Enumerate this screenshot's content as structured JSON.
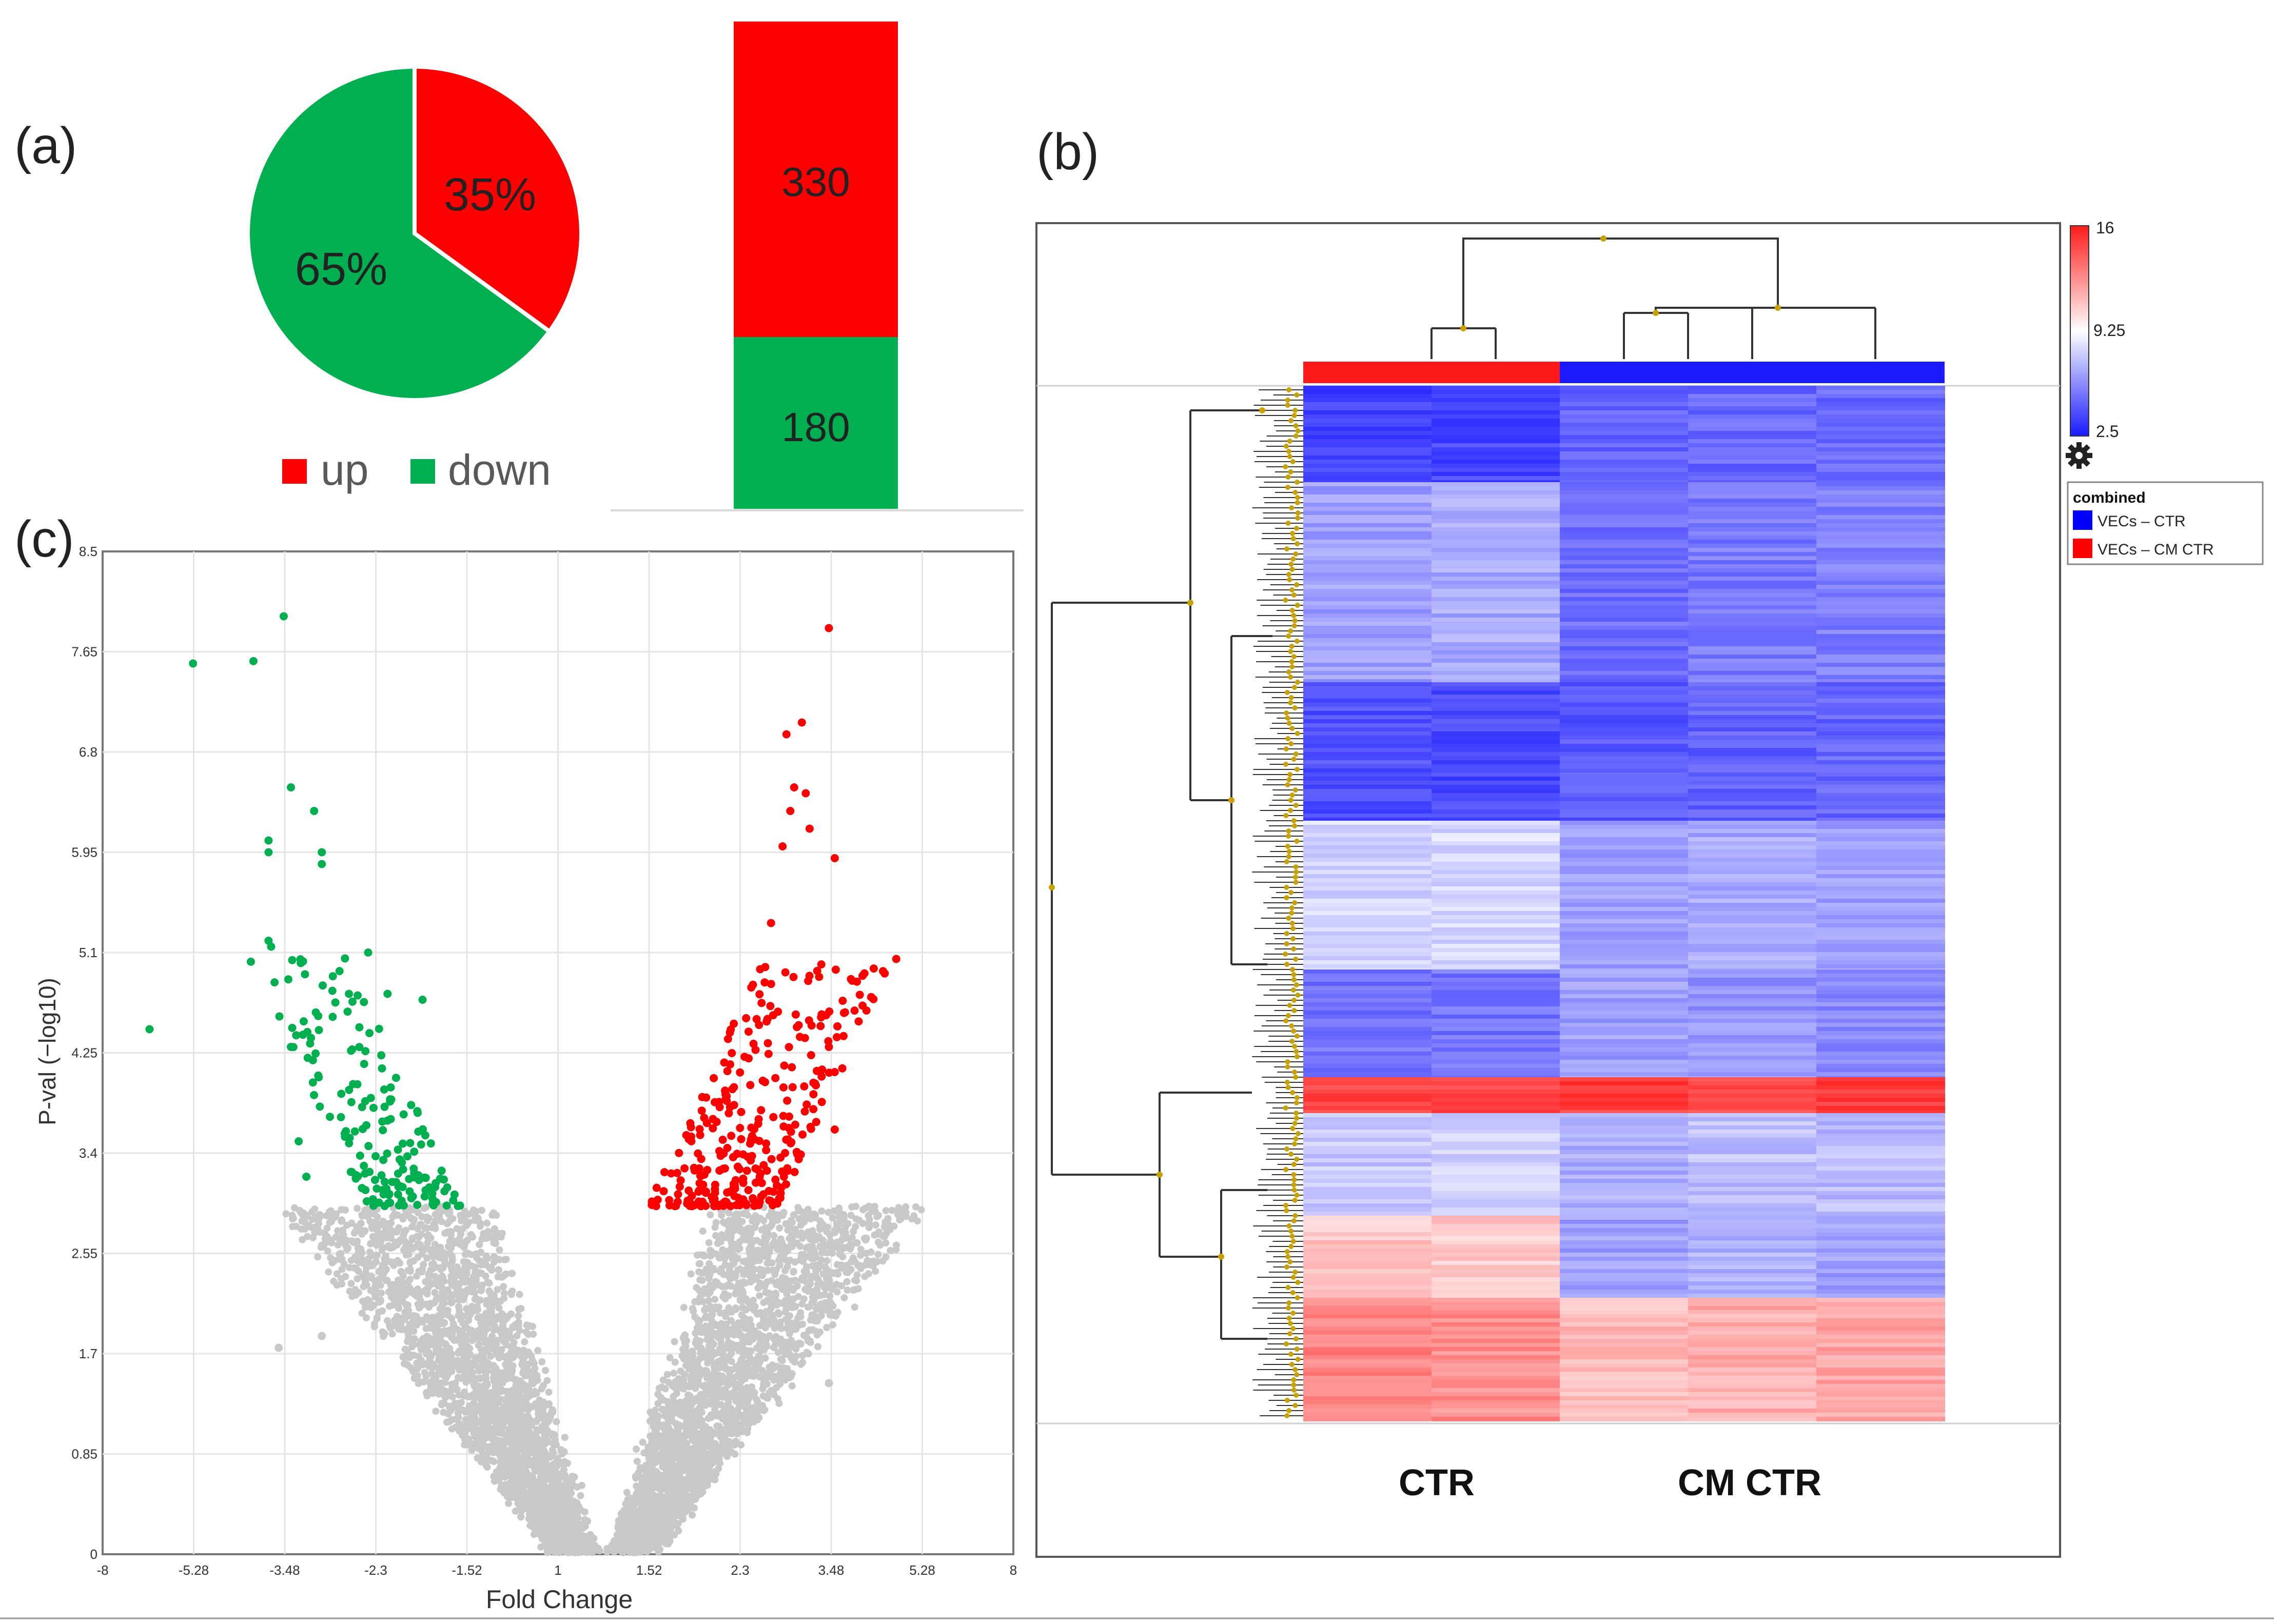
{
  "panels": {
    "a": {
      "label": "(a)"
    },
    "b": {
      "label": "(b)"
    },
    "c": {
      "label": "(c)"
    }
  },
  "colors": {
    "up": "#ff0000",
    "down": "#00b050",
    "ns": "#c8c8c8",
    "heat_low": "#1a1aff",
    "heat_mid": "#ffffff",
    "heat_high": "#ff1a1a",
    "dendro_node": "#c8a000"
  },
  "chart_data": [
    {
      "type": "pie",
      "slices": [
        {
          "label": "up",
          "percent_label": "35%",
          "value": 35,
          "color": "#ff0000"
        },
        {
          "label": "down",
          "percent_label": "65%",
          "value": 65,
          "color": "#00b050"
        }
      ],
      "legend": [
        {
          "name": "up",
          "color": "#ff0000"
        },
        {
          "name": "down",
          "color": "#00b050"
        }
      ],
      "legend_position": "bottom"
    },
    {
      "type": "bar",
      "stacked": true,
      "segments": [
        {
          "name": "up",
          "value": 330,
          "label": "330",
          "color": "#ff0000"
        },
        {
          "name": "down",
          "value": 180,
          "label": "180",
          "color": "#00b050"
        }
      ]
    },
    {
      "type": "scatter",
      "xlabel": "Fold Change",
      "ylabel": "P-val (−log10)",
      "x_ticks": [
        "-8",
        "-5.28",
        "-3.48",
        "-2.3",
        "-1.52",
        "1",
        "1.52",
        "2.3",
        "3.48",
        "5.28",
        "8"
      ],
      "y_ticks": [
        "0",
        "0.85",
        "1.7",
        "2.55",
        "3.4",
        "4.25",
        "5.1",
        "5.95",
        "6.8",
        "7.65",
        "8.5"
      ],
      "ylim": [
        0,
        8.5
      ],
      "grid": true,
      "series": [
        {
          "color": "#00b050",
          "points": [
            [
              -6.6,
              4.45
            ],
            [
              -5.3,
              7.55
            ],
            [
              -4.1,
              7.57
            ],
            [
              -3.5,
              7.95
            ],
            [
              -3.4,
              6.5
            ],
            [
              -3.8,
              6.05
            ],
            [
              -3.8,
              5.95
            ],
            [
              -3.1,
              6.3
            ],
            [
              -3.0,
              5.95
            ],
            [
              -3.0,
              5.85
            ],
            [
              -3.8,
              5.2
            ],
            [
              -3.75,
              5.15
            ],
            [
              -3.4,
              4.3
            ],
            [
              -3.3,
              3.5
            ],
            [
              -3.2,
              3.2
            ],
            [
              -2.7,
              5.05
            ],
            [
              -2.4,
              5.1
            ],
            [
              -2.2,
              4.75
            ],
            [
              -1.9,
              4.7
            ]
          ]
        },
        {
          "color": "#ff0000",
          "points": [
            [
              3.45,
              7.85
            ],
            [
              3.1,
              7.05
            ],
            [
              2.9,
              6.95
            ],
            [
              3.0,
              6.5
            ],
            [
              3.15,
              6.45
            ],
            [
              2.95,
              6.3
            ],
            [
              3.2,
              6.15
            ],
            [
              2.85,
              6.0
            ],
            [
              3.55,
              5.9
            ],
            [
              2.7,
              5.35
            ],
            [
              4.1,
              4.65
            ],
            [
              3.55,
              3.6
            ],
            [
              3.45,
              4.3
            ]
          ]
        },
        {
          "color": "#c8c8c8",
          "points": [
            [
              3.5,
              2.6
            ],
            [
              3.5,
              2.25
            ],
            [
              4.3,
              2.45
            ],
            [
              3.45,
              1.45
            ],
            [
              -3.0,
              1.85
            ],
            [
              -3.6,
              1.75
            ]
          ]
        }
      ]
    },
    {
      "type": "heatmap",
      "columns_groups": [
        "CTR",
        "CM CTR"
      ],
      "color_scale": {
        "max": "16",
        "mid": "9.25",
        "min": "2.5"
      },
      "legend": {
        "title": "combined",
        "items": [
          {
            "name": "VECs – CTR",
            "color": "#0000ff"
          },
          {
            "name": "VECs – CM  CTR",
            "color": "#ff0000"
          }
        ]
      },
      "settings_icon": "gear-icon"
    }
  ]
}
